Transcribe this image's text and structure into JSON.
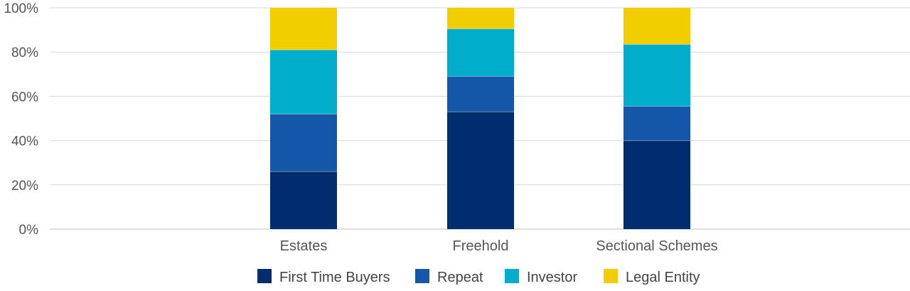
{
  "chart_data": {
    "type": "bar",
    "stacked": true,
    "percent_stacked": true,
    "categories": [
      "Estates",
      "Freehold",
      "Sectional Schemes"
    ],
    "series": [
      {
        "name": "First Time Buyers",
        "color": "#002d6e",
        "values": [
          26,
          53,
          40
        ]
      },
      {
        "name": "Repeat",
        "color": "#1457a8",
        "values": [
          26,
          16,
          15.5
        ]
      },
      {
        "name": "Investor",
        "color": "#00adca",
        "values": [
          29,
          21.5,
          28
        ]
      },
      {
        "name": "Legal Entity",
        "color": "#f2cd00",
        "values": [
          19,
          9.5,
          16.5
        ]
      }
    ],
    "ylim": [
      0,
      100
    ],
    "yticks": [
      0,
      20,
      40,
      60,
      80,
      100
    ],
    "ytick_labels": [
      "0%",
      "20%",
      "40%",
      "60%",
      "80%",
      "100%"
    ],
    "grid": true,
    "legend_position": "bottom",
    "title": "",
    "xlabel": "",
    "ylabel": ""
  }
}
